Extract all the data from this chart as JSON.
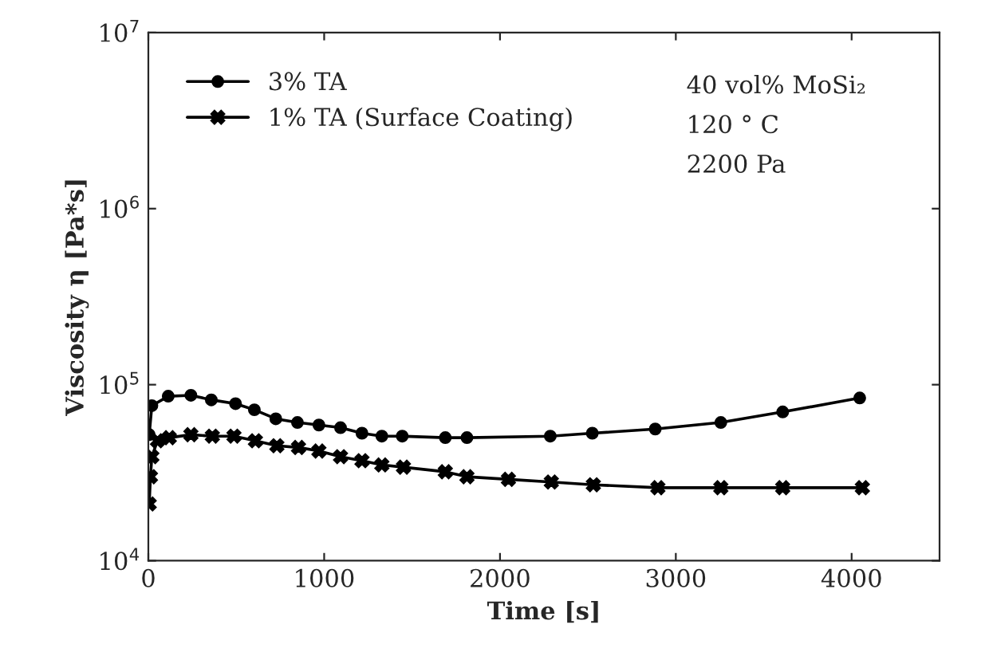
{
  "chart_data": {
    "type": "line",
    "xlabel": "Time [s]",
    "ylabel": "Viscosity η [Pa*s]",
    "log": "y",
    "xlim": [
      0,
      4500
    ],
    "xticks": [
      0,
      1000,
      2000,
      3000,
      4000
    ],
    "ylim": [
      10000,
      10000000
    ],
    "yticks": [
      {
        "value": 10000,
        "label": "10$^{4}$"
      },
      {
        "value": 100000,
        "label": "10$^{5}$"
      },
      {
        "value": 1000000,
        "label": "10$^{6}$"
      },
      {
        "value": 10000000,
        "label": "10$^{7}$"
      }
    ],
    "grid": false,
    "legend": "top left",
    "annotations": [
      "40 vol% MoSi₂",
      "120 ° C",
      "2200 Pa"
    ],
    "series": [
      {
        "name": "3% TA",
        "color": "#000000",
        "marker": "circle",
        "x": [
          5,
          20,
          113,
          242,
          358,
          496,
          603,
          725,
          848,
          970,
          1093,
          1215,
          1328,
          1444,
          1689,
          1812,
          2286,
          2525,
          2883,
          3256,
          3608,
          4046
        ],
        "values": [
          52000,
          76000,
          86000,
          87000,
          82000,
          78000,
          72000,
          64000,
          61000,
          59000,
          57000,
          53000,
          51000,
          51000,
          50000,
          50000,
          51000,
          53000,
          56000,
          61000,
          70000,
          84000
        ]
      },
      {
        "name": "1% TA (Surface Coating)",
        "color": "#000000",
        "marker": "cross",
        "x": [
          5,
          12,
          20,
          52,
          119,
          242,
          364,
          487,
          609,
          731,
          854,
          970,
          1093,
          1215,
          1328,
          1451,
          1689,
          1812,
          2048,
          2292,
          2531,
          2898,
          3256,
          3608,
          4061
        ],
        "values": [
          21000,
          30000,
          39000,
          48000,
          50000,
          52000,
          51000,
          51000,
          48000,
          45000,
          44000,
          42000,
          39000,
          37000,
          35000,
          34000,
          32000,
          30000,
          29000,
          28000,
          27000,
          26000,
          26000,
          26000,
          26000
        ]
      }
    ]
  }
}
